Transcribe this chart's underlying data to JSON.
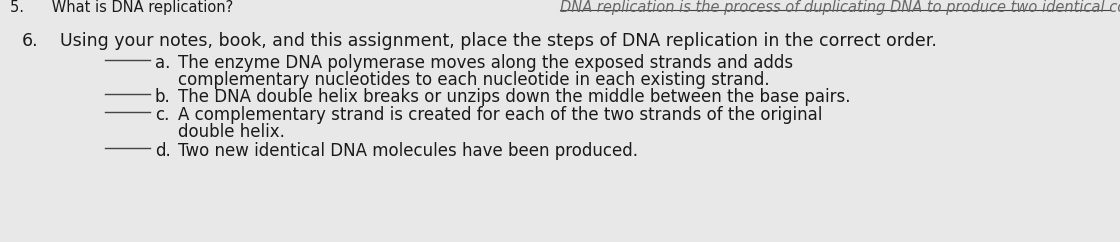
{
  "bg_color": "#e8e8e8",
  "top_text": "DNA replication is the process of duplicating DNA to produce two identical copies",
  "question_number": "6.",
  "question_text": "Using your notes, book, and this assignment, place the steps of DNA replication in the correct order.",
  "items": [
    {
      "label": "a.",
      "line1": "The enzyme DNA polymerase moves along the exposed strands and adds",
      "line2": "complementary nucleotides to each nucleotide in each existing strand."
    },
    {
      "label": "b.",
      "line1": "The DNA double helix breaks or unzips down the middle between the base pairs.",
      "line2": null
    },
    {
      "label": "c.",
      "line1": "A complementary strand is created for each of the two strands of the original",
      "line2": "double helix."
    },
    {
      "label": "d.",
      "line1": "Two new identical DNA molecules have been produced.",
      "line2": null
    }
  ],
  "font_size_question": 12.5,
  "font_size_items": 12.0,
  "font_size_top": 10.5,
  "text_color": "#1a1a1a",
  "line_color": "#444444",
  "top_text_color": "#666666"
}
